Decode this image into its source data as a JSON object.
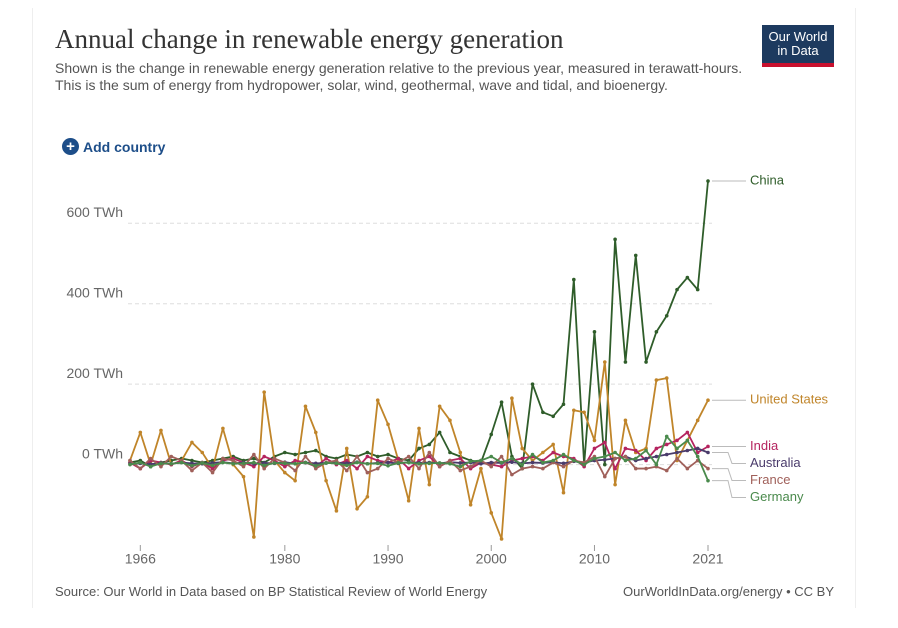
{
  "chart_data": {
    "type": "line",
    "title": "Annual change in renewable energy generation",
    "subtitle": "Shown is the change in renewable energy generation relative to the previous year, measured in terawatt-hours. This is the sum of energy from hydropower, solar, wind, geothermal, wave and tidal, and bioenergy.",
    "logo": "Our World in Data",
    "button": "Add country",
    "source": "Source: Our World in Data based on BP Statistical Review of World Energy",
    "license": "OurWorldInData.org/energy • CC BY",
    "x": [
      1965,
      1966,
      1967,
      1968,
      1969,
      1970,
      1971,
      1972,
      1973,
      1974,
      1975,
      1976,
      1977,
      1978,
      1979,
      1980,
      1981,
      1982,
      1983,
      1984,
      1985,
      1986,
      1987,
      1988,
      1989,
      1990,
      1991,
      1992,
      1993,
      1994,
      1995,
      1996,
      1997,
      1998,
      1999,
      2000,
      2001,
      2002,
      2003,
      2004,
      2005,
      2006,
      2007,
      2008,
      2009,
      2010,
      2011,
      2012,
      2013,
      2014,
      2015,
      2016,
      2017,
      2018,
      2019,
      2020,
      2021
    ],
    "xlim": [
      1965,
      2021
    ],
    "xticks": [
      1966,
      1980,
      1990,
      2000,
      2010,
      2021
    ],
    "ylim": [
      -200,
      720
    ],
    "yticks": [
      {
        "value": 0,
        "label": "0 TWh"
      },
      {
        "value": 200,
        "label": "200 TWh"
      },
      {
        "value": 400,
        "label": "400 TWh"
      },
      {
        "value": 600,
        "label": "600 TWh"
      }
    ],
    "grid": true,
    "series": [
      {
        "name": "China",
        "color": "#2f5d2a",
        "values": [
          5,
          10,
          -5,
          5,
          10,
          15,
          10,
          5,
          10,
          15,
          20,
          10,
          15,
          5,
          20,
          30,
          25,
          30,
          35,
          20,
          15,
          25,
          20,
          30,
          20,
          25,
          15,
          10,
          40,
          50,
          80,
          30,
          20,
          10,
          5,
          75,
          155,
          20,
          -10,
          200,
          130,
          120,
          150,
          460,
          0,
          330,
          0,
          560,
          255,
          520,
          255,
          330,
          370,
          435,
          465,
          435,
          705
        ]
      },
      {
        "name": "United States",
        "color": "#c0852a",
        "values": [
          10,
          80,
          0,
          85,
          0,
          10,
          55,
          30,
          -10,
          90,
          0,
          -30,
          -180,
          180,
          10,
          -20,
          -40,
          145,
          80,
          -40,
          -115,
          40,
          -110,
          -80,
          160,
          100,
          10,
          -90,
          90,
          -50,
          145,
          110,
          30,
          -100,
          -10,
          -120,
          -185,
          165,
          40,
          10,
          30,
          50,
          -70,
          135,
          130,
          60,
          255,
          -50,
          110,
          30,
          40,
          210,
          215,
          10,
          60,
          110,
          160
        ]
      },
      {
        "name": "India",
        "color": "#b5245f",
        "values": [
          5,
          -10,
          10,
          5,
          0,
          10,
          -5,
          5,
          -10,
          10,
          15,
          5,
          -5,
          20,
          10,
          -5,
          10,
          5,
          -5,
          15,
          0,
          10,
          -10,
          20,
          10,
          5,
          15,
          -10,
          10,
          20,
          -5,
          10,
          15,
          -10,
          5,
          0,
          -5,
          10,
          15,
          20,
          10,
          30,
          20,
          15,
          -5,
          40,
          55,
          -10,
          40,
          35,
          10,
          40,
          50,
          60,
          80,
          30,
          45
        ]
      },
      {
        "name": "Australia",
        "color": "#4a3b6b",
        "values": [
          2,
          3,
          1,
          4,
          2,
          5,
          3,
          2,
          4,
          6,
          3,
          5,
          2,
          4,
          3,
          6,
          2,
          5,
          3,
          4,
          5,
          3,
          6,
          2,
          4,
          5,
          3,
          6,
          4,
          5,
          3,
          6,
          4,
          5,
          2,
          5,
          4,
          6,
          3,
          5,
          4,
          6,
          3,
          8,
          5,
          10,
          12,
          15,
          20,
          10,
          15,
          20,
          25,
          30,
          35,
          40,
          30
        ]
      },
      {
        "name": "France",
        "color": "#a0605a",
        "values": [
          10,
          -10,
          15,
          -5,
          20,
          10,
          -15,
          5,
          -20,
          15,
          10,
          -5,
          25,
          -10,
          15,
          5,
          -15,
          20,
          -10,
          5,
          10,
          -15,
          20,
          -20,
          -10,
          15,
          5,
          20,
          -10,
          30,
          -5,
          10,
          -15,
          -5,
          10,
          -5,
          20,
          -25,
          -10,
          -5,
          -10,
          5,
          -5,
          10,
          5,
          20,
          -30,
          15,
          20,
          -10,
          -10,
          -5,
          -15,
          15,
          -10,
          10,
          -10
        ]
      },
      {
        "name": "Germany",
        "color": "#4a8a4c",
        "values": [
          0,
          5,
          -5,
          3,
          2,
          5,
          -3,
          4,
          -2,
          5,
          2,
          3,
          5,
          -2,
          4,
          3,
          2,
          5,
          -3,
          4,
          3,
          -2,
          5,
          2,
          3,
          -3,
          4,
          5,
          2,
          3,
          4,
          2,
          -5,
          8,
          10,
          20,
          5,
          15,
          0,
          25,
          5,
          10,
          25,
          10,
          0,
          15,
          20,
          30,
          10,
          15,
          35,
          0,
          70,
          40,
          60,
          20,
          -40
        ]
      }
    ]
  }
}
